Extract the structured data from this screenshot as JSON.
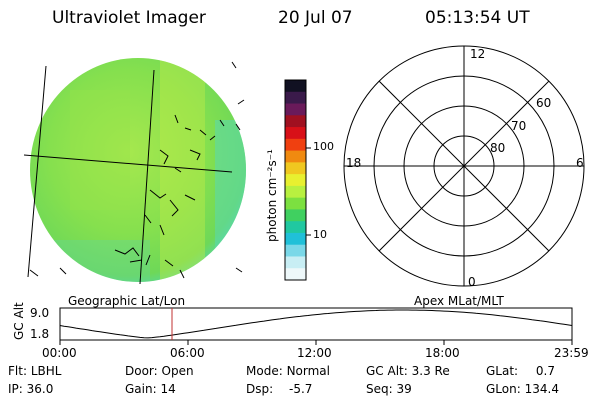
{
  "header": {
    "title": "Ultraviolet Imager",
    "date": "20 Jul 07",
    "time": "05:13:54 UT"
  },
  "colorbar": {
    "unit_label": "photon cm⁻²s⁻¹",
    "ticks": [
      "100",
      "10"
    ],
    "colors": [
      "#111122",
      "#3a1a4a",
      "#6a1a5a",
      "#a01020",
      "#d81018",
      "#f04010",
      "#f08a10",
      "#f0c820",
      "#e8f030",
      "#b8f040",
      "#7ce040",
      "#40d060",
      "#20c8a0",
      "#20c0d8",
      "#7ad8e8",
      "#c8eef4",
      "#eef8fa"
    ]
  },
  "left_panel": {
    "caption": "Geographic Lat/Lon",
    "image_colors": {
      "base": "#7ee050",
      "light": "#a6e84e",
      "cyan": "#4cd6c0"
    }
  },
  "right_panel": {
    "caption": "Apex MLat/MLT",
    "mlt_labels": {
      "top": "12",
      "bottom": "0",
      "left": "18",
      "right": "6"
    },
    "lat_labels": [
      "60",
      "70",
      "80"
    ]
  },
  "altitude_plot": {
    "ylabel": "GC Alt",
    "ytick_top": "9.0",
    "ytick_bottom": "1.8",
    "xticks": [
      "00:00",
      "06:00",
      "12:00",
      "18:00",
      "23:59"
    ],
    "marker_color": "#c03030"
  },
  "status": {
    "row1": [
      {
        "label": "Flt:",
        "value": "LBHL"
      },
      {
        "label": "Door:",
        "value": "Open"
      },
      {
        "label": "Mode:",
        "value": "Normal"
      },
      {
        "label": "GC Alt:",
        "value": "3.3 Re"
      },
      {
        "label": "GLat:",
        "value": "0.7"
      }
    ],
    "row2": [
      {
        "label": "IP:",
        "value": "36.0"
      },
      {
        "label": "Gain:",
        "value": "14"
      },
      {
        "label": "Dsp:",
        "value": "-5.7"
      },
      {
        "label": "Seq:",
        "value": "39"
      },
      {
        "label": "GLon:",
        "value": "134.4"
      }
    ]
  }
}
